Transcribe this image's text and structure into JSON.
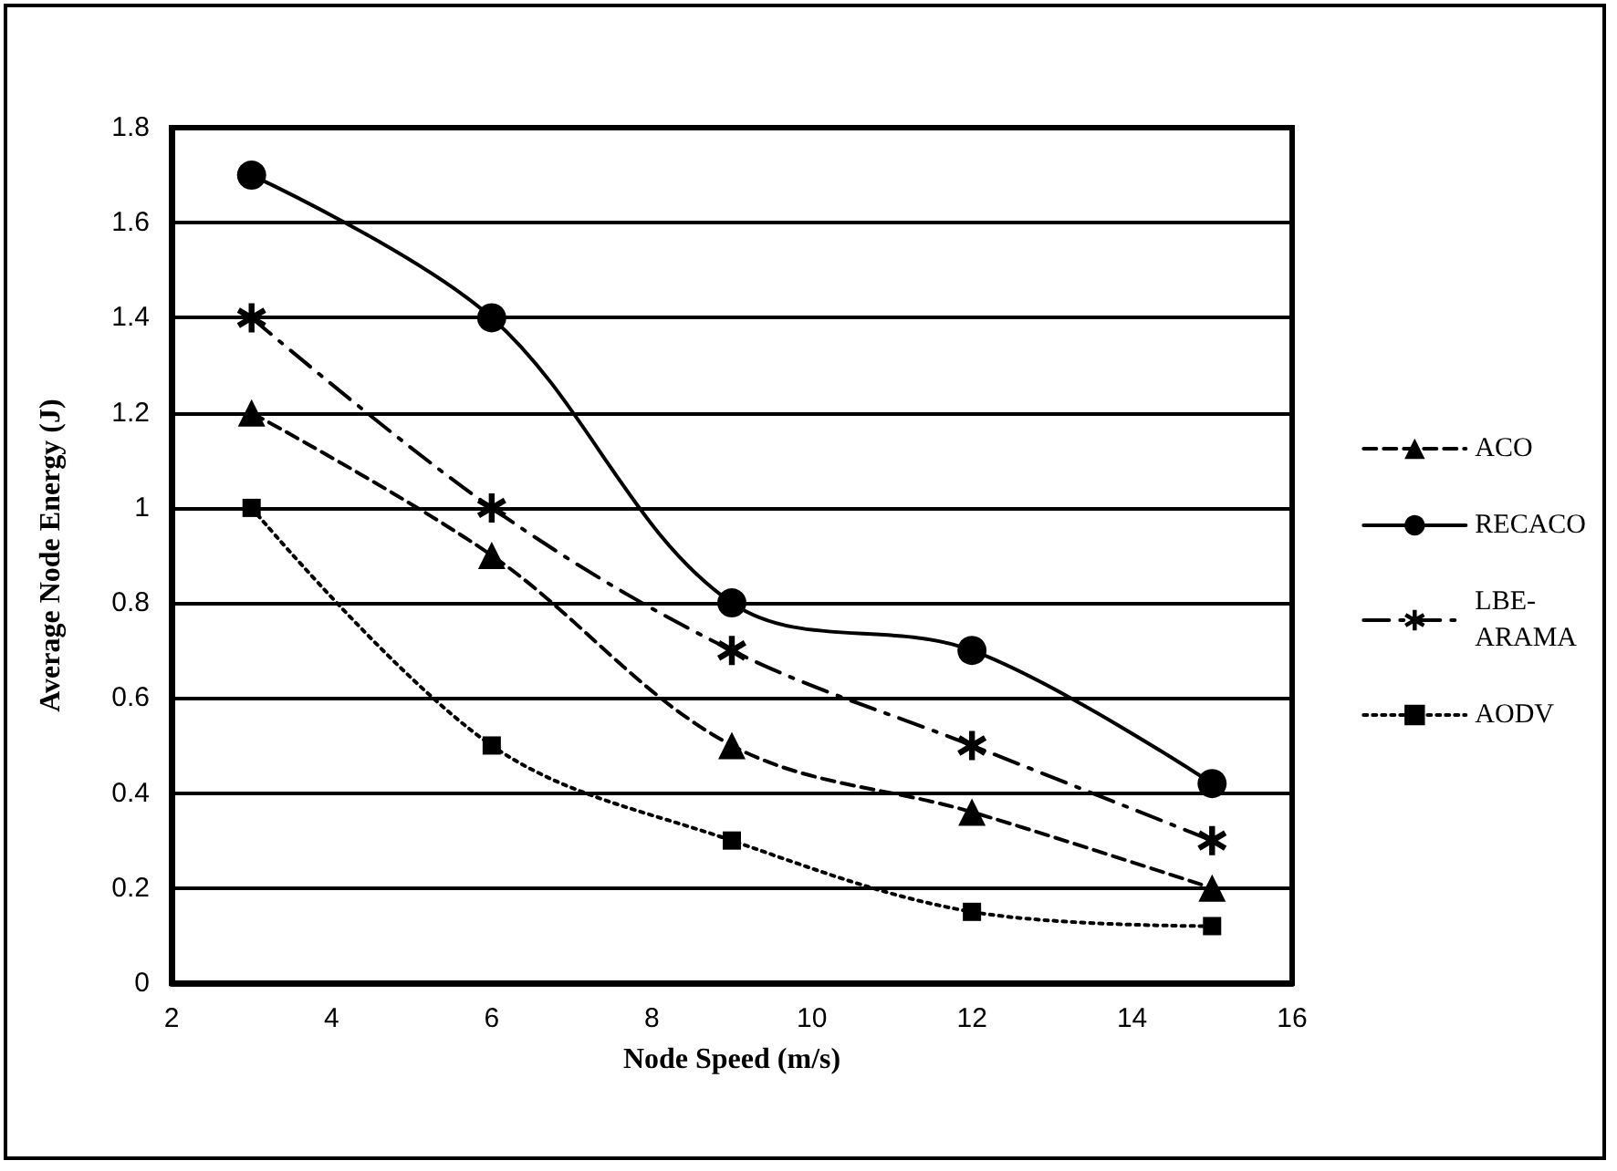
{
  "chart_data": {
    "type": "line",
    "xlabel": "Node Speed (m/s)",
    "ylabel": "Average Node Energy (J)",
    "x": [
      3,
      6,
      9,
      12,
      15
    ],
    "series": [
      {
        "name": "ACO",
        "color": "#000000",
        "values": [
          1.2,
          0.9,
          0.5,
          0.36,
          0.2
        ],
        "marker": "triangle",
        "line_style": "dashed"
      },
      {
        "name": "RECACO",
        "color": "#000000",
        "values": [
          1.7,
          1.4,
          0.8,
          0.7,
          0.42
        ],
        "marker": "circle",
        "line_style": "solid"
      },
      {
        "name": "LBE-\nARAMA",
        "color": "#000000",
        "values": [
          1.4,
          1.0,
          0.7,
          0.5,
          0.3
        ],
        "marker": "cross",
        "line_style": "dashdot"
      },
      {
        "name": "AODV",
        "color": "#000000",
        "values": [
          1.0,
          0.5,
          0.3,
          0.15,
          0.12
        ],
        "marker": "square",
        "line_style": "dotted"
      }
    ],
    "xlim": [
      2,
      16
    ],
    "xticks": [
      2,
      4,
      6,
      8,
      10,
      12,
      14,
      16
    ],
    "ylim": [
      0,
      1.8
    ],
    "yticks": [
      0,
      0.2,
      0.4,
      0.6,
      0.8,
      1,
      1.2,
      1.4,
      1.6,
      1.8
    ],
    "grid": "y",
    "legend": "right"
  }
}
